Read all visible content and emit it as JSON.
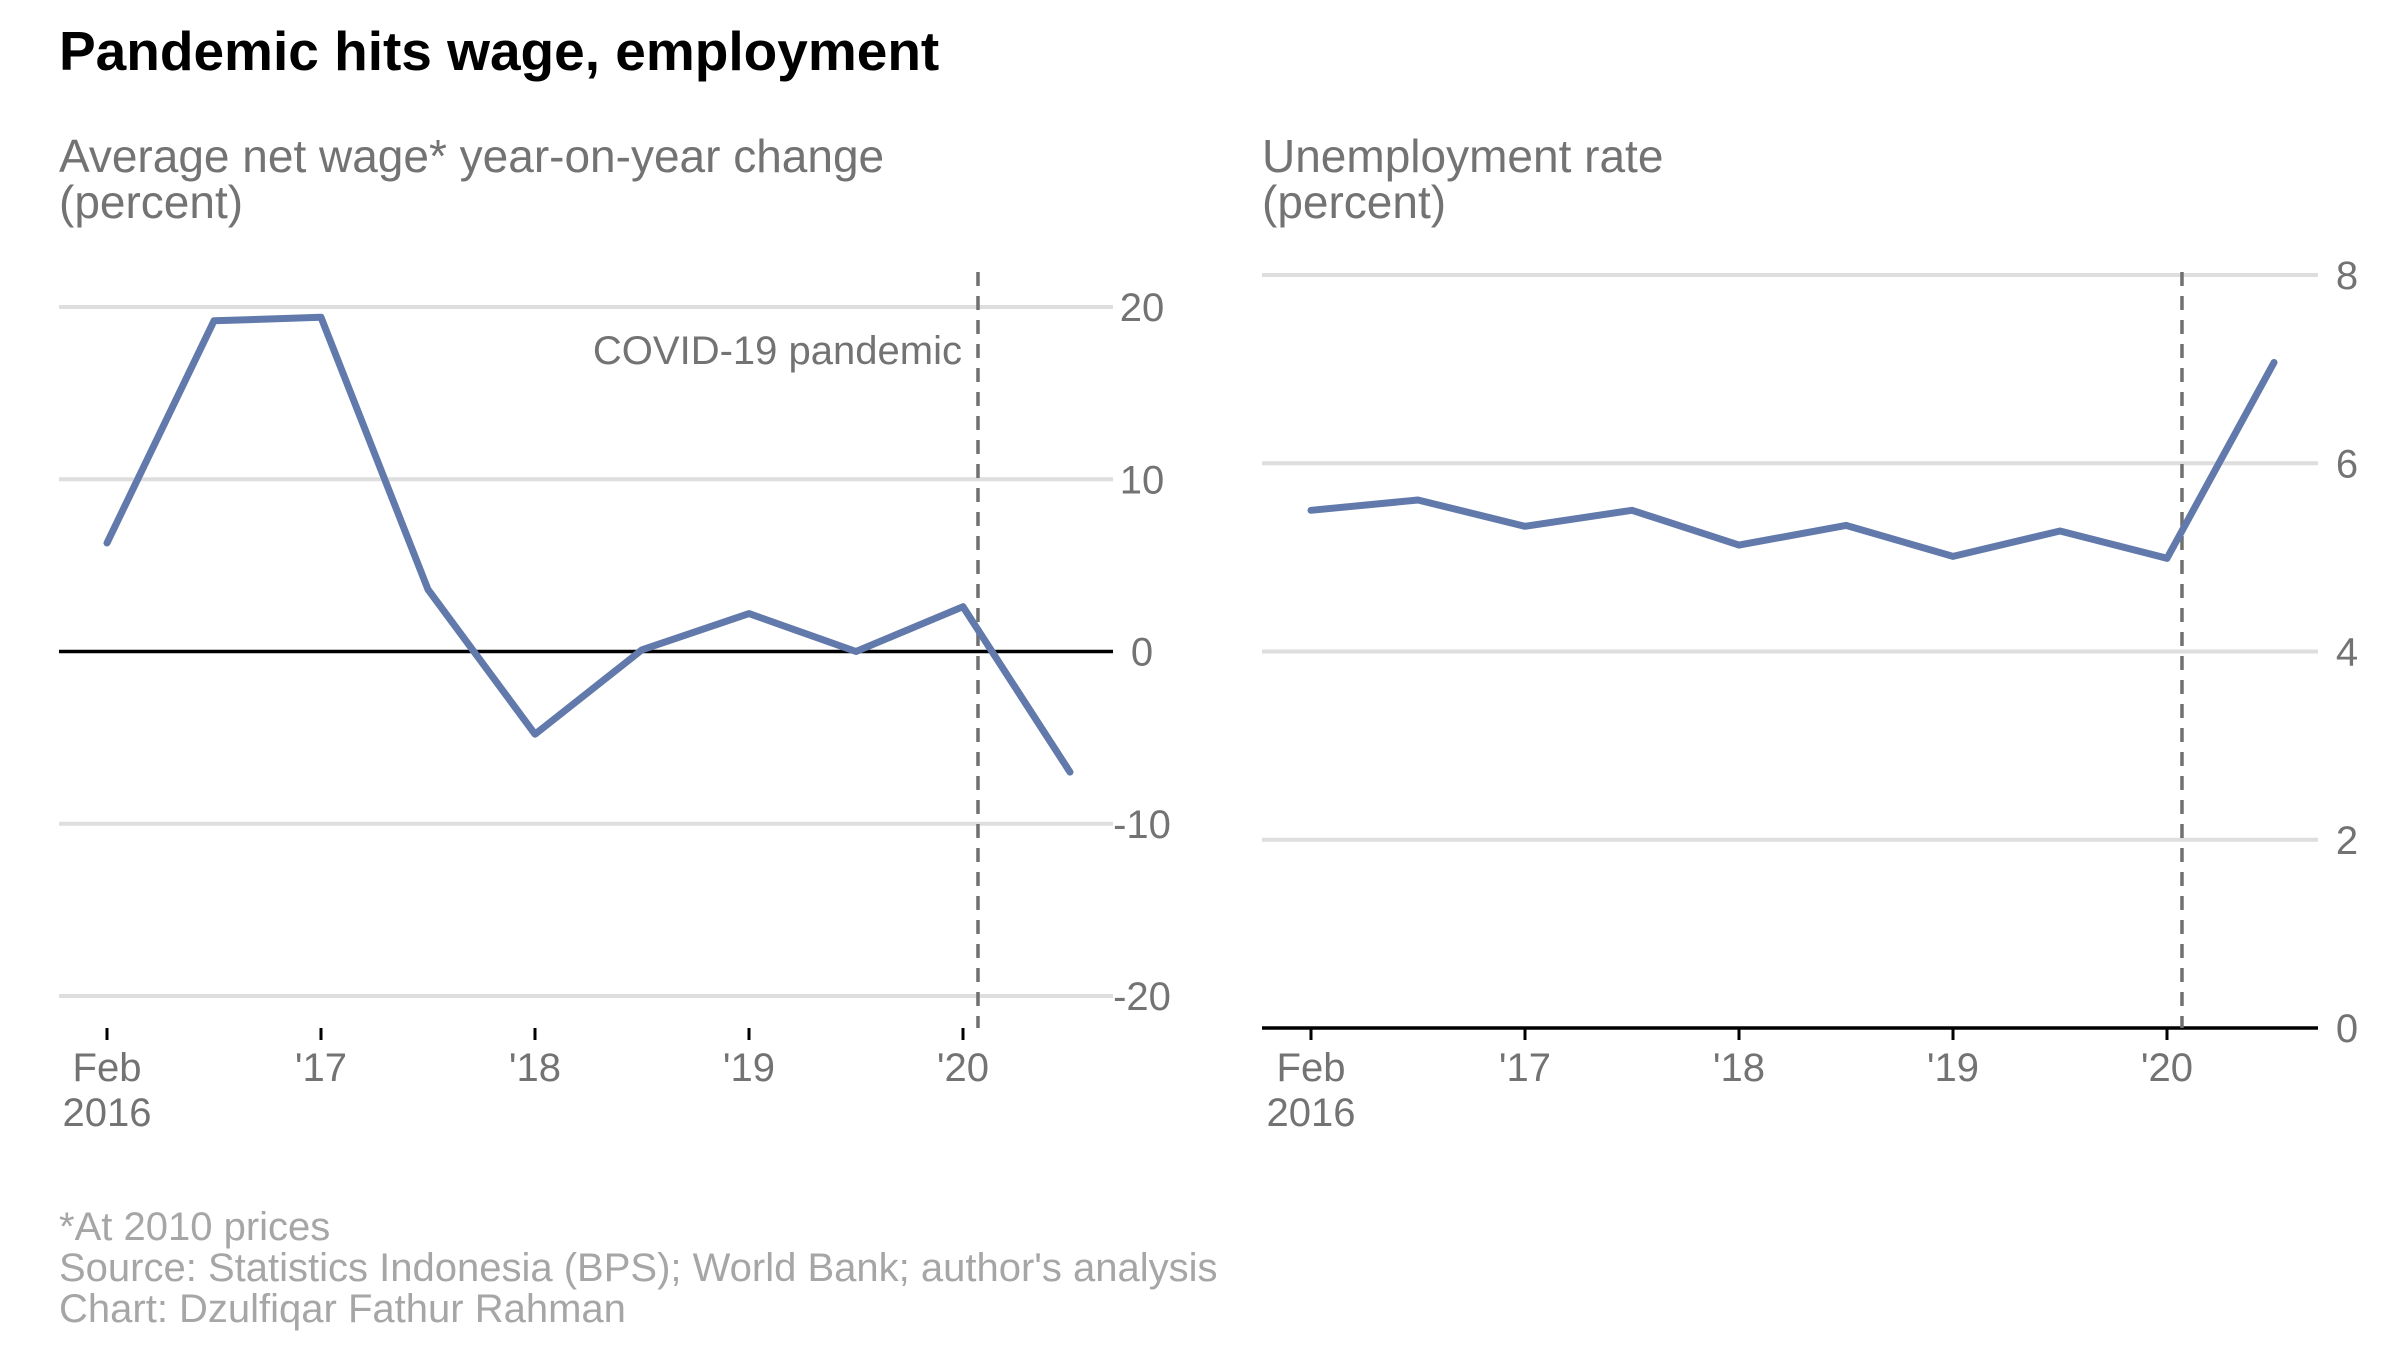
{
  "title": "Pandemic hits wage, employment",
  "notes": [
    "*At 2010 prices",
    "Source: Statistics Indonesia (BPS); World Bank; author's analysis",
    "Chart: Dzulfiqar Fathur Rahman"
  ],
  "colors": {
    "series": "#6279ab",
    "title": "#000000",
    "subtitle": "#737373",
    "note": "#a6a6a6",
    "grid": "#dedede"
  },
  "chart_data": [
    {
      "type": "line",
      "title": "Average net wage* year-on-year change",
      "subtitle": "(percent)",
      "ylim": [
        -20,
        20
      ],
      "y_ticks": [
        20,
        10,
        0,
        -10,
        -20
      ],
      "y_axis_side": "right",
      "grid": true,
      "zero_line": true,
      "x_tick_labels": [
        {
          "label": "Feb",
          "label2": "2016",
          "x": 2016.0
        },
        {
          "label": "'17",
          "x": 2017.0
        },
        {
          "label": "'18",
          "x": 2018.0
        },
        {
          "label": "'19",
          "x": 2019.0
        },
        {
          "label": "'20",
          "x": 2020.0
        }
      ],
      "xlim": [
        2015.8,
        2020.7
      ],
      "series": [
        {
          "x": [
            2016.0,
            2016.5,
            2017.0,
            2017.5,
            2018.0,
            2018.5,
            2019.0,
            2019.5,
            2020.0,
            2020.5
          ],
          "values": [
            6.3,
            19.2,
            19.4,
            3.6,
            -4.8,
            0.1,
            2.2,
            0.0,
            2.6,
            -7.0
          ]
        }
      ],
      "annotation": {
        "label": "COVID-19 pandemic",
        "x": 2020.07
      }
    },
    {
      "type": "line",
      "title": "Unemployment rate",
      "subtitle": "(percent)",
      "ylim": [
        0,
        8
      ],
      "y_ticks": [
        8,
        6,
        4,
        2,
        0
      ],
      "y_axis_side": "right",
      "grid": true,
      "x_tick_labels": [
        {
          "label": "Feb",
          "label2": "2016",
          "x": 2016.0
        },
        {
          "label": "'17",
          "x": 2017.0
        },
        {
          "label": "'18",
          "x": 2018.0
        },
        {
          "label": "'19",
          "x": 2019.0
        },
        {
          "label": "'20",
          "x": 2020.0
        }
      ],
      "xlim": [
        2015.8,
        2020.7
      ],
      "series": [
        {
          "x": [
            2016.0,
            2016.5,
            2017.0,
            2017.5,
            2018.0,
            2018.5,
            2019.0,
            2019.5,
            2020.0,
            2020.5
          ],
          "values": [
            5.5,
            5.61,
            5.33,
            5.5,
            5.13,
            5.34,
            5.01,
            5.28,
            4.99,
            7.07
          ]
        }
      ],
      "annotation": {
        "x": 2020.07
      }
    }
  ]
}
